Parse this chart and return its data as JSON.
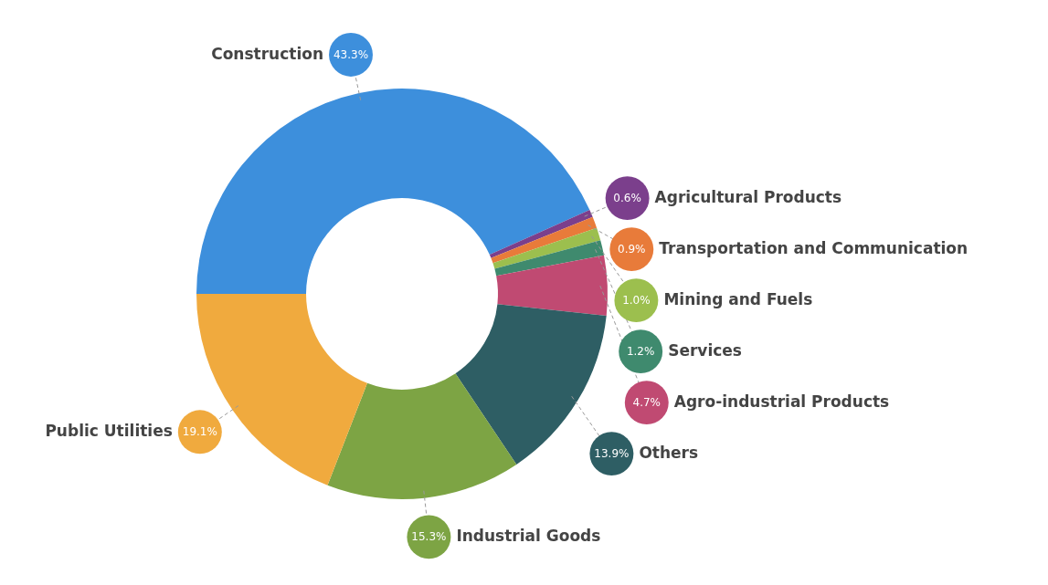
{
  "chart_data": {
    "type": "donut",
    "categories": [
      "Construction",
      "Agricultural Products",
      "Transportation and Communication",
      "Mining and Fuels",
      "Services",
      "Agro-industrial Products",
      "Others",
      "Industrial Goods",
      "Public Utilities"
    ],
    "values": [
      43.3,
      0.6,
      0.9,
      1.0,
      1.2,
      4.7,
      13.9,
      15.3,
      19.1
    ],
    "colors": [
      "#3d8fdc",
      "#7b3f8c",
      "#e87b3a",
      "#9cbf4e",
      "#3f8a6e",
      "#c04a72",
      "#2e5e64",
      "#7da444",
      "#f0aa3e"
    ],
    "value_labels": [
      "43.3%",
      "0.6%",
      "0.9%",
      "1.0%",
      "1.2%",
      "4.7%",
      "13.9%",
      "15.3%",
      "19.1%"
    ]
  }
}
